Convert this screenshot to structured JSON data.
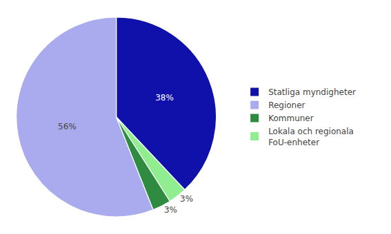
{
  "chart_data": {
    "type": "pie",
    "values": [
      38,
      3,
      3,
      56
    ],
    "value_labels": [
      "38%",
      "3%",
      "3%",
      "56%"
    ],
    "colors": [
      "#1010AA",
      "#90EE90",
      "#2E8B40",
      "#AAAAEE"
    ],
    "series": [
      {
        "name": "Statliga myndigheter",
        "color": "#1010AA"
      },
      {
        "name": "Regioner",
        "color": "#AAAAEE"
      },
      {
        "name": "Kommuner",
        "color": "#2E8B40"
      },
      {
        "name": "Lokala och regionala\nFoU-enheter",
        "color": "#90EE90"
      }
    ],
    "legend": "right"
  }
}
